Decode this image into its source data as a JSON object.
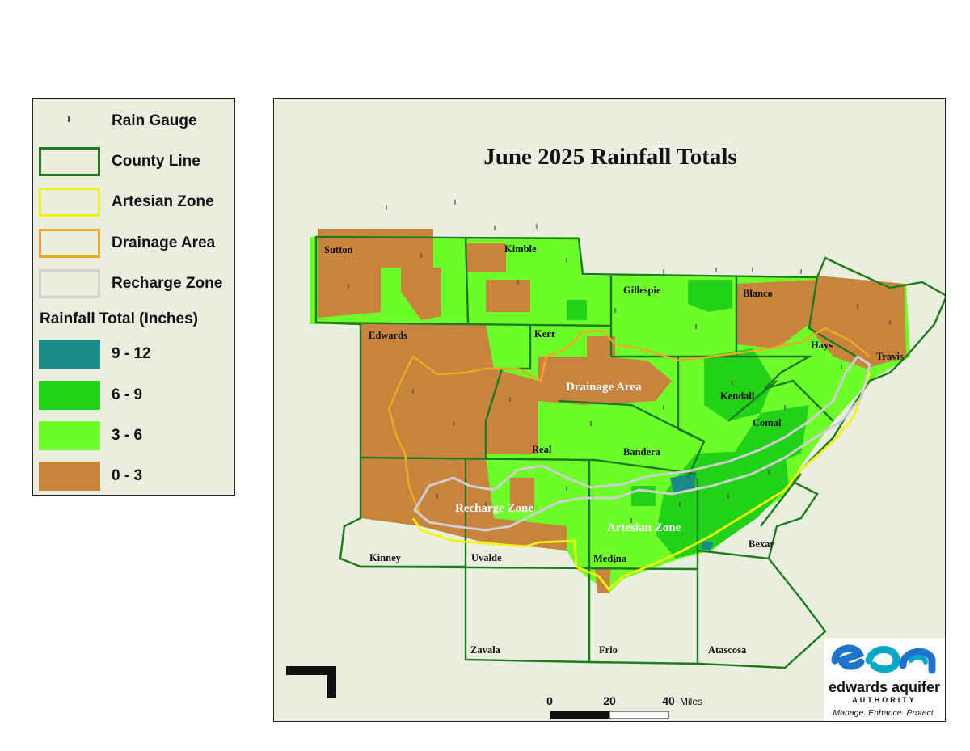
{
  "title": "June 2025 Rainfall Totals",
  "legend": {
    "items": [
      {
        "label": "Rain Gauge",
        "icon": "rain-gauge-tick"
      },
      {
        "label": "County Line",
        "color": "#1e7a1e"
      },
      {
        "label": "Artesian Zone",
        "color": "#f4f40a"
      },
      {
        "label": "Drainage Area",
        "color": "#f5a623"
      },
      {
        "label": "Recharge Zone",
        "color": "#cfcfcf"
      }
    ],
    "rainfall_heading": "Rainfall Total (Inches)",
    "classes": [
      {
        "label": "9 - 12",
        "color": "#1a8a8a"
      },
      {
        "label": "6 - 9",
        "color": "#22d11a"
      },
      {
        "label": "3 - 6",
        "color": "#6efc2a"
      },
      {
        "label": "0 - 3",
        "color": "#c8843f"
      }
    ]
  },
  "counties": [
    "Sutton",
    "Kimble",
    "Gillespie",
    "Blanco",
    "Edwards",
    "Kerr",
    "Hays",
    "Travis",
    "Kendall",
    "Comal",
    "Real",
    "Bandera",
    "Kinney",
    "Uvalde",
    "Medina",
    "Bexar",
    "Zavala",
    "Frio",
    "Atascosa"
  ],
  "zone_labels": {
    "drainage": "Drainage Area",
    "recharge": "Recharge Zone",
    "artesian": "Artesian Zone"
  },
  "scale": {
    "ticks": [
      "0",
      "20",
      "40"
    ],
    "unit": "Miles"
  },
  "logo": {
    "name": "edwards aquifer",
    "authority": "AUTHORITY",
    "tagline": "Manage. Enhance. Protect.",
    "icon": "eaa-wave-logo"
  }
}
